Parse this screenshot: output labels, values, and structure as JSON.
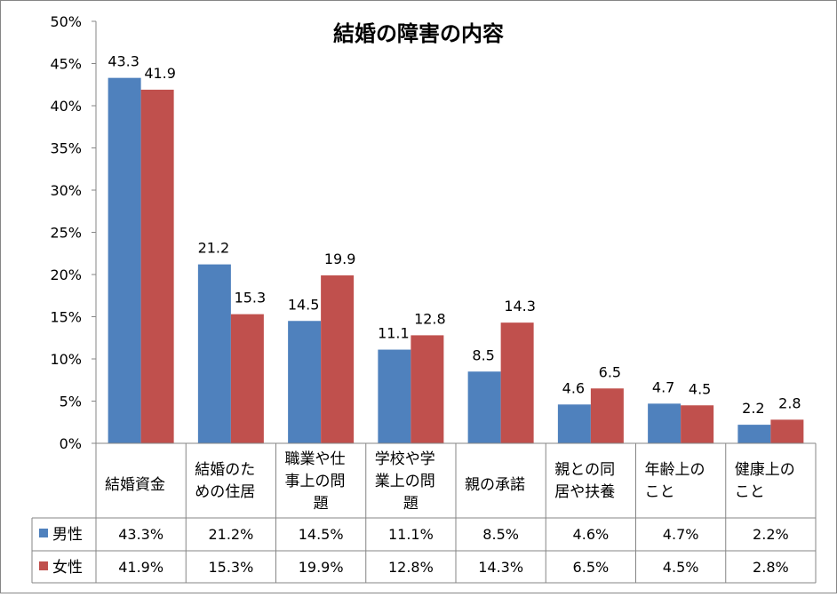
{
  "chart_data": {
    "type": "bar",
    "title": "結婚の障害の内容",
    "categories": [
      [
        "結婚資金"
      ],
      [
        "結婚のた",
        "めの住居"
      ],
      [
        "職業や仕",
        "事上の問",
        "題"
      ],
      [
        "学校や学",
        "業上の問",
        "題"
      ],
      [
        "親の承諾"
      ],
      [
        "親との同",
        "居や扶養"
      ],
      [
        "年齢上の",
        "こと"
      ],
      [
        "健康上の",
        "こと"
      ]
    ],
    "series": [
      {
        "name": "男性",
        "color": "#4F81BD",
        "values": [
          43.3,
          21.2,
          14.5,
          11.1,
          8.5,
          4.6,
          4.7,
          2.2
        ],
        "labels": [
          "43.3",
          "21.2",
          "14.5",
          "11.1",
          "8.5",
          "4.6",
          "4.7",
          "2.2"
        ],
        "table": [
          "43.3%",
          "21.2%",
          "14.5%",
          "11.1%",
          "8.5%",
          "4.6%",
          "4.7%",
          "2.2%"
        ]
      },
      {
        "name": "女性",
        "color": "#C0504D",
        "values": [
          41.9,
          15.3,
          19.9,
          12.8,
          14.3,
          6.5,
          4.5,
          2.8
        ],
        "labels": [
          "41.9",
          "15.3",
          "19.9",
          "12.8",
          "14.3",
          "6.5",
          "4.5",
          "2.8"
        ],
        "table": [
          "41.9%",
          "15.3%",
          "19.9%",
          "12.8%",
          "14.3%",
          "6.5%",
          "4.5%",
          "2.8%"
        ]
      }
    ],
    "ylim": [
      0,
      50
    ],
    "yticks": [
      "0%",
      "5%",
      "10%",
      "15%",
      "20%",
      "25%",
      "30%",
      "35%",
      "40%",
      "45%",
      "50%"
    ],
    "grid": false,
    "legend": "data-table"
  }
}
